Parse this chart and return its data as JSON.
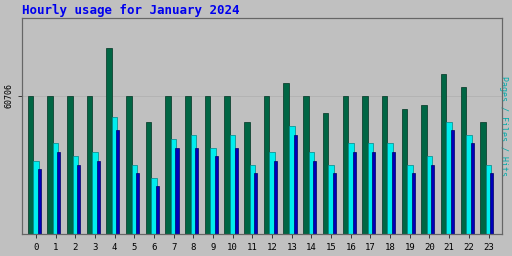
{
  "title": "Hourly usage for January 2024",
  "title_color": "#0000ee",
  "title_fontsize": 9,
  "background_color": "#c0c0c0",
  "plot_bg_color": "#c0c0c0",
  "hours": [
    0,
    1,
    2,
    3,
    4,
    5,
    6,
    7,
    8,
    9,
    10,
    11,
    12,
    13,
    14,
    15,
    16,
    17,
    18,
    19,
    20,
    21,
    22,
    23
  ],
  "pages": [
    59200,
    59600,
    59300,
    59400,
    60200,
    59100,
    58800,
    59700,
    59800,
    59500,
    59800,
    59100,
    59400,
    60000,
    59400,
    59100,
    59600,
    59600,
    59600,
    59100,
    59300,
    60100,
    59800,
    59100
  ],
  "files": [
    59000,
    59400,
    59100,
    59200,
    59900,
    58900,
    58600,
    59500,
    59500,
    59300,
    59500,
    58900,
    59200,
    59800,
    59200,
    58900,
    59400,
    59400,
    59400,
    58900,
    59100,
    59900,
    59600,
    58900
  ],
  "hits": [
    60706,
    60706,
    60706,
    60706,
    61800,
    60706,
    60100,
    60706,
    60706,
    60706,
    60706,
    60100,
    60706,
    61000,
    60706,
    60300,
    60706,
    60706,
    60706,
    60400,
    60500,
    61200,
    60900,
    60100
  ],
  "ytick_label": "60706",
  "ytick_val": 60706,
  "ymin": 57500,
  "ymax": 62500,
  "pages_color": "#00eeee",
  "files_color": "#0000bb",
  "hits_color": "#006644",
  "bar_width": 0.28,
  "font_family": "monospace",
  "ylabel_right": "Pages / Files / Hits",
  "ylabel_right_color": "#00aaaa"
}
